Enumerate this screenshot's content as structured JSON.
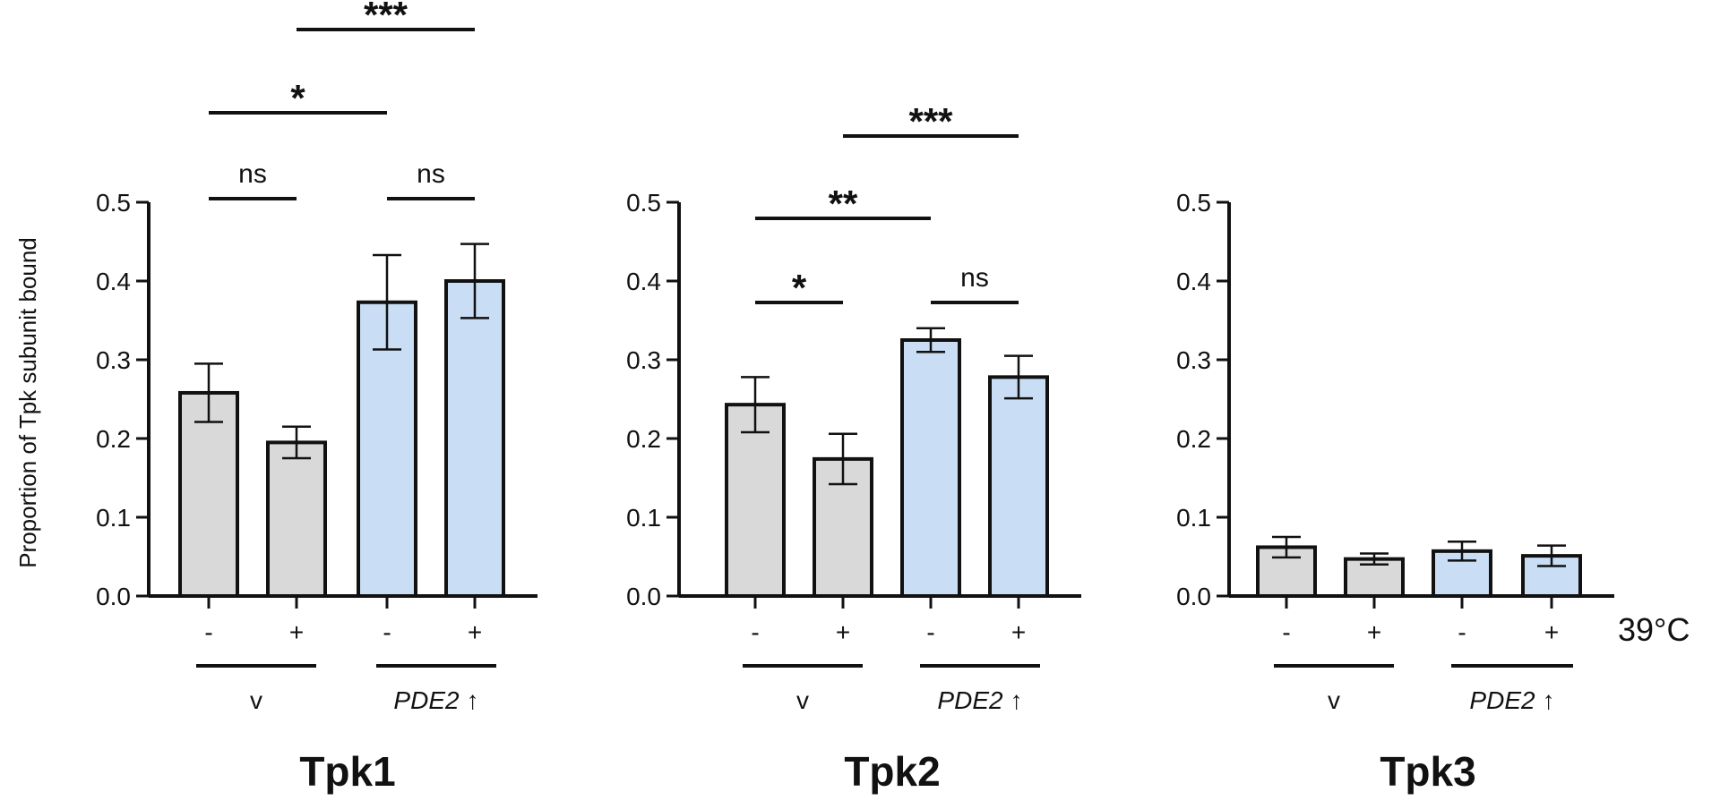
{
  "ylabel": "Proportion of Tpk subunit bound",
  "temperature_label": "39°C",
  "condition_labels": [
    "-",
    "+",
    "-",
    "+"
  ],
  "group_labels": {
    "vector": "v",
    "overexpression": "PDE2",
    "arrow": "↑"
  },
  "colors": {
    "control": "#d9d9d9",
    "overexpression": "#c9ddf4",
    "stroke": "#111111"
  },
  "chart_data": [
    {
      "type": "bar",
      "title": "Tpk1",
      "categories": [
        "v -",
        "v +",
        "PDE2↑ -",
        "PDE2↑ +"
      ],
      "values": [
        0.258,
        0.195,
        0.373,
        0.4
      ],
      "errors": [
        0.037,
        0.02,
        0.06,
        0.047
      ],
      "ylim": [
        0,
        0.5
      ],
      "yticks": [
        "0.0",
        "0.1",
        "0.2",
        "0.3",
        "0.4",
        "0.5"
      ],
      "significance": [
        {
          "from": 0,
          "to": 1,
          "label": "ns"
        },
        {
          "from": 2,
          "to": 3,
          "label": "ns"
        },
        {
          "from": 0,
          "to": 2,
          "label": "*"
        },
        {
          "from": 1,
          "to": 3,
          "label": "***"
        }
      ]
    },
    {
      "type": "bar",
      "title": "Tpk2",
      "categories": [
        "v -",
        "v +",
        "PDE2↑ -",
        "PDE2↑ +"
      ],
      "values": [
        0.243,
        0.174,
        0.325,
        0.278
      ],
      "errors": [
        0.035,
        0.032,
        0.015,
        0.027
      ],
      "ylim": [
        0,
        0.5
      ],
      "yticks": [
        "0.0",
        "0.1",
        "0.2",
        "0.3",
        "0.4",
        "0.5"
      ],
      "significance": [
        {
          "from": 0,
          "to": 1,
          "label": "*"
        },
        {
          "from": 2,
          "to": 3,
          "label": "ns"
        },
        {
          "from": 0,
          "to": 2,
          "label": "**"
        },
        {
          "from": 1,
          "to": 3,
          "label": "***"
        }
      ]
    },
    {
      "type": "bar",
      "title": "Tpk3",
      "categories": [
        "v -",
        "v +",
        "PDE2↑ -",
        "PDE2↑ +"
      ],
      "values": [
        0.062,
        0.047,
        0.057,
        0.051
      ],
      "errors": [
        0.013,
        0.007,
        0.012,
        0.013
      ],
      "ylim": [
        0,
        0.5
      ],
      "yticks": [
        "0.0",
        "0.1",
        "0.2",
        "0.3",
        "0.4",
        "0.5"
      ],
      "significance": []
    }
  ]
}
